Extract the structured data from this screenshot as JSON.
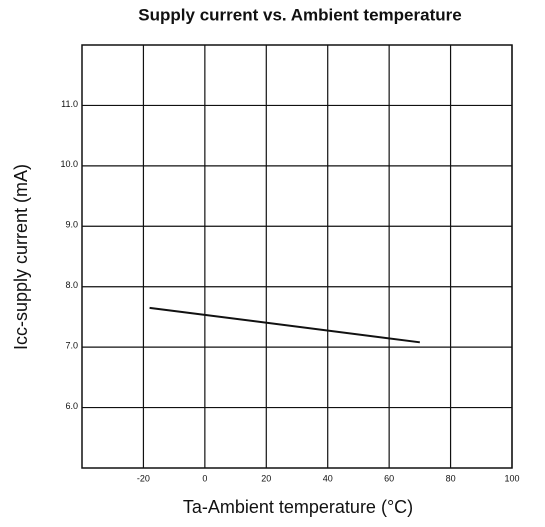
{
  "chart_data": {
    "type": "line",
    "title": "Supply current vs. Ambient temperature",
    "xlabel": "Ta-Ambient temperature (°C)",
    "ylabel": "Icc-supply current (mA)",
    "x": [
      -18,
      70
    ],
    "series": [
      {
        "color": "#111111",
        "values": [
          7.65,
          7.08
        ]
      }
    ],
    "xlim": [
      -40,
      100
    ],
    "xticks": [
      -20,
      0,
      20,
      40,
      60,
      80,
      100
    ],
    "ylim": [
      5,
      12
    ],
    "yticks": [
      {
        "value": 6,
        "label": "6.0"
      },
      {
        "value": 7,
        "label": "7.0"
      },
      {
        "value": 8,
        "label": "8.0"
      },
      {
        "value": 9,
        "label": "9.0"
      },
      {
        "value": 10,
        "label": "10.0"
      },
      {
        "value": 11,
        "label": "11.0"
      }
    ],
    "grid": true
  }
}
